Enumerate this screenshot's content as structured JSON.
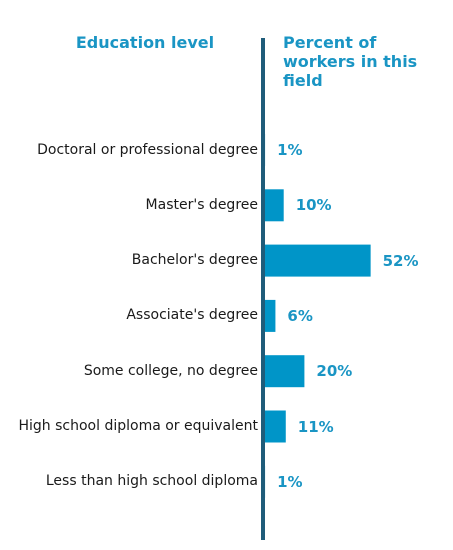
{
  "chart_data": {
    "type": "bar",
    "orientation": "horizontal",
    "column_headers": {
      "categories": "Education level",
      "values": "Percent of workers in this field"
    },
    "categories": [
      "Doctoral or professional degree",
      "Master's degree",
      "Bachelor's degree",
      "Associate's degree",
      "Some college, no degree",
      "High school diploma or equivalent",
      "Less than high school diploma"
    ],
    "values": [
      1,
      10,
      52,
      6,
      20,
      11,
      1
    ],
    "value_labels": [
      "1%",
      "10%",
      "52%",
      "6%",
      "20%",
      "11%",
      "1%"
    ],
    "unit": "%",
    "bar_color": "#0095c8",
    "axis_color": "#1f5c7a",
    "label_color": "#1a95c4"
  }
}
